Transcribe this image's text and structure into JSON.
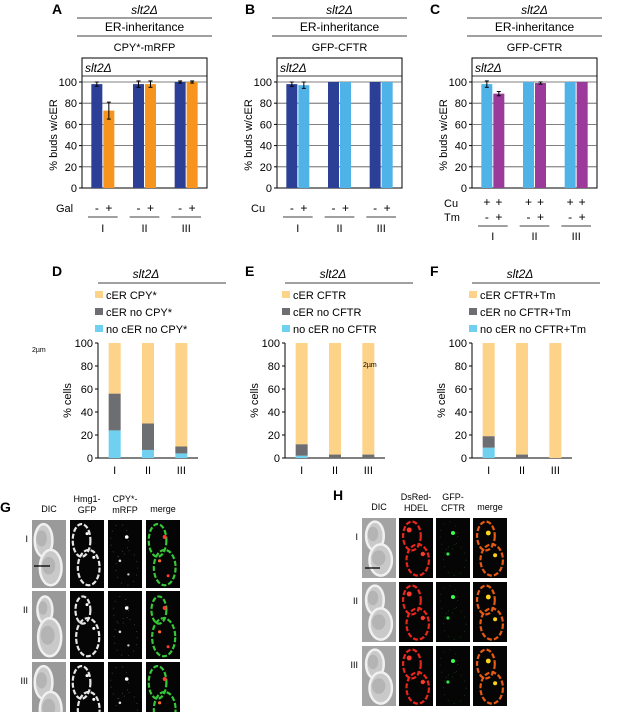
{
  "panel_letters": [
    "A",
    "B",
    "C",
    "D",
    "E",
    "F",
    "G",
    "H"
  ],
  "colors": {
    "navy": "#2b3f97",
    "orange": "#f7941d",
    "sky": "#4fb3e8",
    "purple": "#9b3a9a",
    "peach": "#fdd38a",
    "gray": "#6d6e71",
    "cyan": "#6fd0f0"
  },
  "header": {
    "strain": "slt2Δ",
    "inheritance": "ER-inheritance"
  },
  "top_common": {
    "ylabel": "% buds w/cER",
    "inset": "slt2Δ",
    "yticks": [
      "0",
      "20",
      "40",
      "60",
      "80",
      "100"
    ],
    "groups": [
      "I",
      "II",
      "III"
    ],
    "minus": "-",
    "plus": "+"
  },
  "bottom_common": {
    "ylabel": "% cells",
    "yticks": [
      "0",
      "20",
      "40",
      "60",
      "80",
      "100"
    ],
    "groups": [
      "I",
      "II",
      "III"
    ],
    "scale_note": "2µm"
  },
  "chart_data": [
    {
      "panel": "A",
      "type": "bar",
      "reporter": "CPY*-mRFP",
      "condition": "Gal",
      "categories": [
        "I",
        "II",
        "III"
      ],
      "ylim": [
        0,
        100
      ],
      "series": [
        {
          "values": [
            98,
            98,
            100
          ],
          "errors": [
            2,
            3,
            1
          ]
        },
        {
          "values": [
            73,
            98,
            100
          ],
          "errors": [
            8,
            3,
            1
          ]
        }
      ]
    },
    {
      "panel": "B",
      "type": "bar",
      "reporter": "GFP-CFTR",
      "condition": "Cu",
      "categories": [
        "I",
        "II",
        "III"
      ],
      "ylim": [
        0,
        100
      ],
      "series": [
        {
          "values": [
            98,
            100,
            100
          ],
          "errors": [
            2,
            0,
            0
          ]
        },
        {
          "values": [
            97,
            100,
            100
          ],
          "errors": [
            3,
            0,
            0
          ]
        }
      ]
    },
    {
      "panel": "C",
      "type": "bar",
      "reporter": "GFP-CFTR",
      "condition": "Cu",
      "condition2": "Tm",
      "categories": [
        "I",
        "II",
        "III"
      ],
      "ylim": [
        0,
        100
      ],
      "series": [
        {
          "values": [
            98,
            100,
            100
          ],
          "errors": [
            3,
            0,
            0
          ]
        },
        {
          "values": [
            89,
            99,
            100
          ],
          "errors": [
            2,
            1,
            0
          ]
        }
      ]
    },
    {
      "panel": "D",
      "type": "bar",
      "stacked": true,
      "categories": [
        "I",
        "II",
        "III"
      ],
      "ylim": [
        0,
        100
      ],
      "series": [
        {
          "name": "cER CPY*",
          "values": [
            44,
            70,
            90
          ]
        },
        {
          "name": "cER no CPY*",
          "values": [
            32,
            23,
            6
          ]
        },
        {
          "name": "no cER no CPY*",
          "values": [
            24,
            7,
            4
          ]
        }
      ]
    },
    {
      "panel": "E",
      "type": "bar",
      "stacked": true,
      "categories": [
        "I",
        "II",
        "III"
      ],
      "ylim": [
        0,
        100
      ],
      "series": [
        {
          "name": "cER CFTR",
          "values": [
            88,
            97,
            97
          ]
        },
        {
          "name": "cER no CFTR",
          "values": [
            10,
            3,
            3
          ]
        },
        {
          "name": "no cER no CFTR",
          "values": [
            2,
            0,
            0
          ]
        }
      ]
    },
    {
      "panel": "F",
      "type": "bar",
      "stacked": true,
      "categories": [
        "I",
        "II",
        "III"
      ],
      "ylim": [
        0,
        100
      ],
      "series": [
        {
          "name": "cER CFTR+Tm",
          "values": [
            81,
            97,
            100
          ]
        },
        {
          "name": "cER no CFTR+Tm",
          "values": [
            10,
            3,
            0
          ]
        },
        {
          "name": "no cER no CFTR+Tm",
          "values": [
            9,
            0,
            0
          ]
        }
      ]
    }
  ],
  "micro_g": {
    "columns": [
      "DIC",
      "Hmg1-\nGFP",
      "CPY*-\nmRFP",
      "merge"
    ],
    "rows": [
      "I",
      "II",
      "III"
    ]
  },
  "micro_h": {
    "columns": [
      "DIC",
      "DsRed-\nHDEL",
      "GFP-\nCFTR",
      "merge"
    ],
    "rows": [
      "I",
      "II",
      "III"
    ]
  }
}
